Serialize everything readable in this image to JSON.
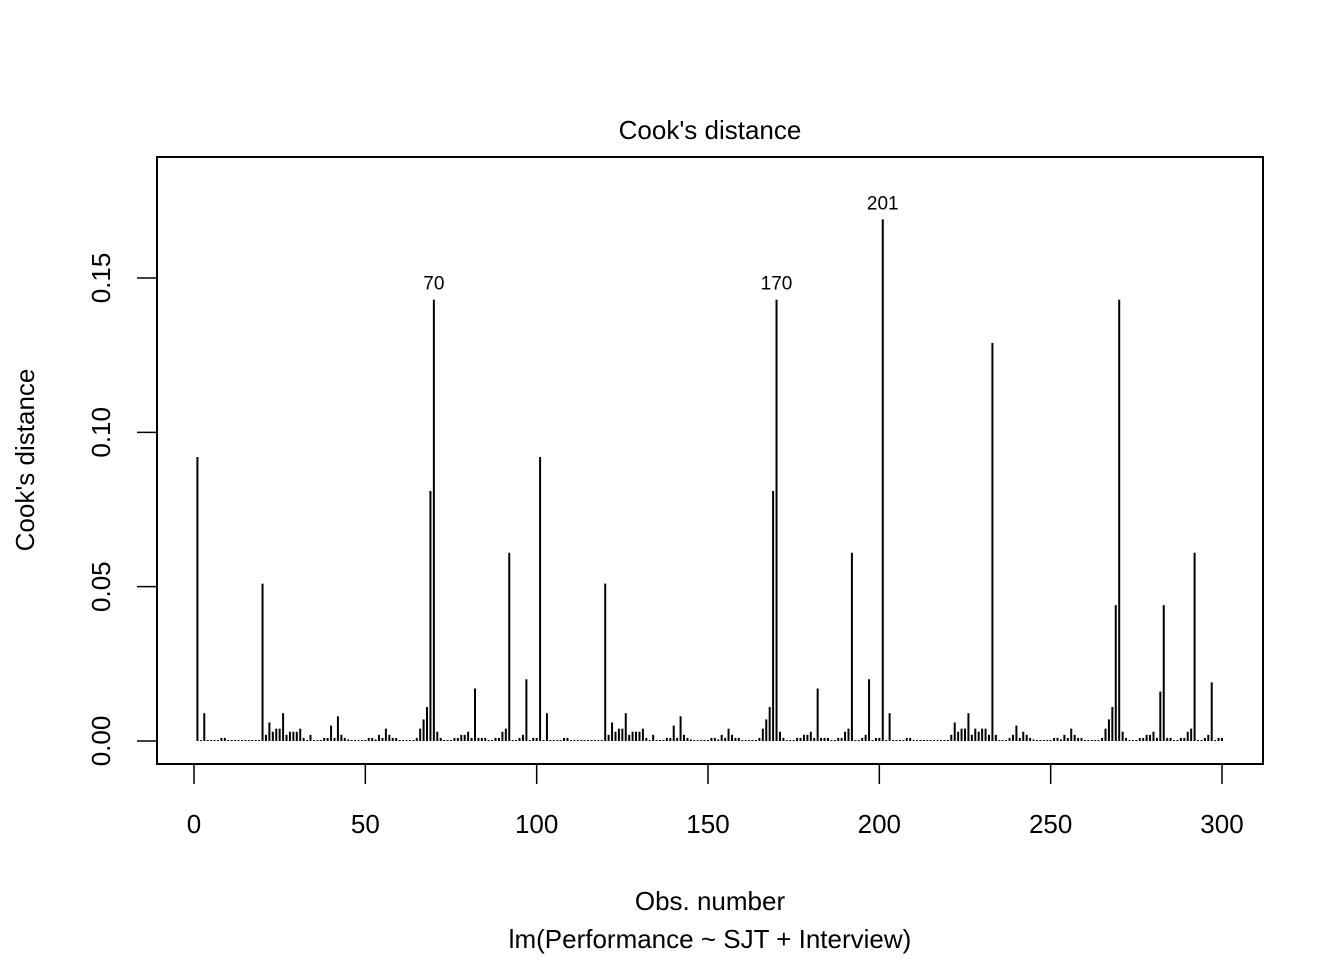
{
  "chart_data": {
    "type": "bar",
    "style": "histogram-spikes",
    "title": "Cook's distance",
    "xlabel": "Obs. number",
    "subtitle": "lm(Performance ~ SJT + Interview)",
    "ylabel": "Cook's distance",
    "xlim": [
      0,
      300
    ],
    "ylim": [
      0,
      0.175
    ],
    "grid": false,
    "legend": null,
    "x_ticks": [
      0,
      50,
      100,
      150,
      200,
      250,
      300
    ],
    "x_tick_labels": [
      "0",
      "50",
      "100",
      "150",
      "200",
      "250",
      "300"
    ],
    "y_ticks": [
      0.0,
      0.05,
      0.1,
      0.15
    ],
    "y_tick_labels": [
      "0.00",
      "0.05",
      "0.10",
      "0.15"
    ],
    "annotations": [
      {
        "label": "70",
        "x": 70,
        "y": 0.143
      },
      {
        "label": "170",
        "x": 170,
        "y": 0.143
      },
      {
        "label": "201",
        "x": 201,
        "y": 0.169
      }
    ],
    "x": "1..300",
    "values": [
      0.092,
      0.0002,
      0.009,
      0.0002,
      0.0002,
      0.0002,
      0.0003,
      0.001,
      0.001,
      0.0002,
      0.0002,
      0.0002,
      0.0002,
      0.0002,
      0.0002,
      0.0002,
      0.0002,
      0.0002,
      0.0002,
      0.051,
      0.002,
      0.006,
      0.003,
      0.004,
      0.004,
      0.009,
      0.002,
      0.003,
      0.003,
      0.003,
      0.004,
      0.001,
      0.0002,
      0.002,
      0.0002,
      0.0002,
      0.0002,
      0.001,
      0.001,
      0.005,
      0.001,
      0.008,
      0.002,
      0.001,
      0.0005,
      0.0002,
      0.0002,
      0.0002,
      0.0002,
      0.0002,
      0.001,
      0.001,
      0.0005,
      0.002,
      0.001,
      0.004,
      0.002,
      0.001,
      0.001,
      0.0002,
      0.0002,
      0.0002,
      0.0002,
      0.0002,
      0.001,
      0.004,
      0.007,
      0.011,
      0.081,
      0.143,
      0.003,
      0.001,
      0.0002,
      0.0002,
      0.0002,
      0.001,
      0.001,
      0.002,
      0.002,
      0.003,
      0.001,
      0.017,
      0.001,
      0.001,
      0.001,
      0.0002,
      0.0002,
      0.001,
      0.001,
      0.003,
      0.004,
      0.061,
      0.0002,
      0.0002,
      0.001,
      0.002,
      0.02,
      0.0002,
      0.001,
      0.001,
      0.092,
      0.0002,
      0.009,
      0.0002,
      0.0002,
      0.0002,
      0.0003,
      0.001,
      0.001,
      0.0002,
      0.0002,
      0.0002,
      0.0002,
      0.0002,
      0.0002,
      0.0002,
      0.0002,
      0.0002,
      0.0002,
      0.051,
      0.002,
      0.006,
      0.003,
      0.004,
      0.004,
      0.009,
      0.002,
      0.003,
      0.003,
      0.003,
      0.004,
      0.001,
      0.0002,
      0.002,
      0.0002,
      0.0002,
      0.0002,
      0.001,
      0.001,
      0.005,
      0.001,
      0.008,
      0.002,
      0.001,
      0.0005,
      0.0002,
      0.0002,
      0.0002,
      0.0002,
      0.0002,
      0.001,
      0.001,
      0.0005,
      0.002,
      0.001,
      0.004,
      0.002,
      0.001,
      0.001,
      0.0002,
      0.0002,
      0.0002,
      0.0002,
      0.0002,
      0.001,
      0.004,
      0.007,
      0.011,
      0.081,
      0.143,
      0.003,
      0.001,
      0.0002,
      0.0002,
      0.0002,
      0.001,
      0.001,
      0.002,
      0.002,
      0.003,
      0.001,
      0.017,
      0.001,
      0.001,
      0.001,
      0.0002,
      0.0002,
      0.001,
      0.001,
      0.003,
      0.004,
      0.061,
      0.0002,
      0.0002,
      0.001,
      0.002,
      0.02,
      0.0002,
      0.001,
      0.001,
      0.169,
      0.0002,
      0.009,
      0.0002,
      0.0002,
      0.0002,
      0.0003,
      0.001,
      0.001,
      0.0002,
      0.0002,
      0.0002,
      0.0002,
      0.0002,
      0.0002,
      0.0002,
      0.0002,
      0.0002,
      0.0002,
      0.0002,
      0.002,
      0.006,
      0.003,
      0.004,
      0.004,
      0.009,
      0.002,
      0.004,
      0.003,
      0.004,
      0.004,
      0.002,
      0.129,
      0.002,
      0.0002,
      0.0002,
      0.0002,
      0.001,
      0.002,
      0.005,
      0.001,
      0.003,
      0.002,
      0.001,
      0.0005,
      0.0002,
      0.0002,
      0.0002,
      0.0002,
      0.0002,
      0.001,
      0.001,
      0.0005,
      0.002,
      0.001,
      0.004,
      0.002,
      0.001,
      0.001,
      0.0002,
      0.0002,
      0.0002,
      0.0002,
      0.0002,
      0.001,
      0.004,
      0.007,
      0.011,
      0.044,
      0.143,
      0.003,
      0.001,
      0.0002,
      0.0002,
      0.0002,
      0.001,
      0.001,
      0.002,
      0.002,
      0.003,
      0.001,
      0.016,
      0.044,
      0.001,
      0.001,
      0.0002,
      0.0002,
      0.001,
      0.001,
      0.003,
      0.004,
      0.061,
      0.0002,
      0.0002,
      0.001,
      0.002,
      0.019,
      0.0002,
      0.001,
      0.001
    ]
  },
  "plot": {
    "title": "Cook's distance",
    "xlabel": "Obs. number",
    "subtitle": "lm(Performance ~ SJT + Interview)",
    "ylabel": "Cook's distance",
    "bar_color": "#000000",
    "background": "#ffffff"
  }
}
